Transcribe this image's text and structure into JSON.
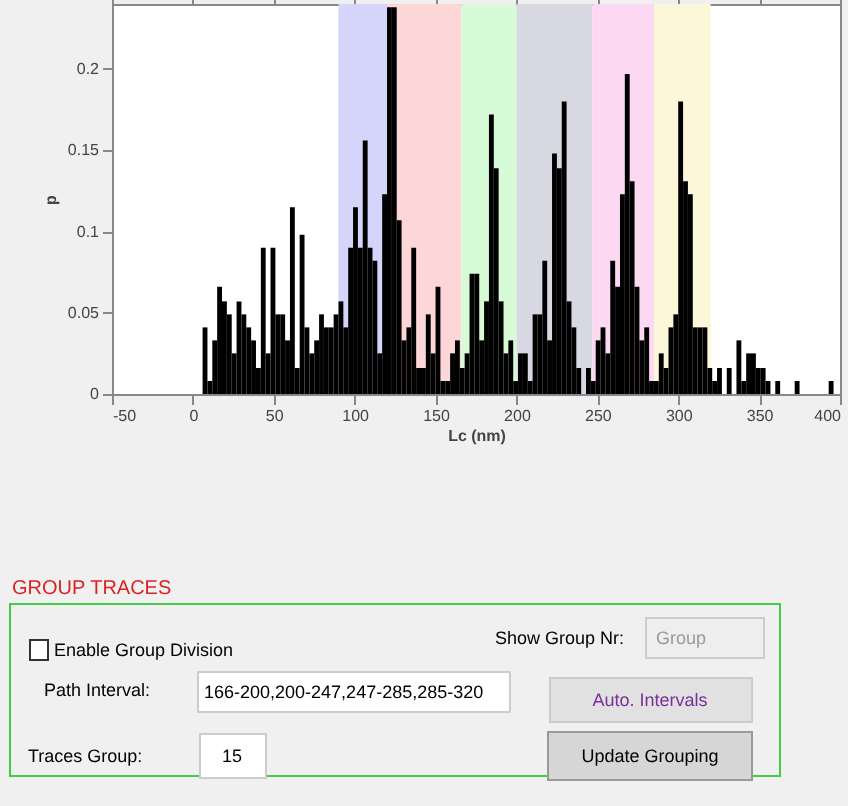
{
  "chart_data": [
    {
      "type": "histogram",
      "xlabel": "Lc (nm)",
      "ylabel": "p",
      "xlim": [
        -50,
        400
      ],
      "ylim": [
        0,
        0.24
      ],
      "xticks": [
        -50,
        0,
        50,
        100,
        150,
        200,
        250,
        300,
        350,
        400
      ],
      "yticks": [
        0,
        0.05,
        0.1,
        0.15,
        0.2
      ],
      "grid": false,
      "color": "#000000",
      "bins": [
        6,
        9,
        12,
        15,
        18,
        21,
        24,
        27,
        30,
        33,
        36,
        39,
        42,
        45,
        48,
        51,
        54,
        57,
        60,
        63,
        66,
        69,
        72,
        75,
        78,
        81,
        84,
        87,
        90,
        93,
        96,
        99,
        102,
        105,
        108,
        111,
        114,
        117,
        120,
        123,
        126,
        129,
        132,
        135,
        138,
        141,
        144,
        147,
        150,
        153,
        156,
        159,
        162,
        165,
        168,
        171,
        174,
        177,
        180,
        183,
        186,
        189,
        192,
        195,
        198,
        201,
        204,
        207,
        210,
        213,
        216,
        219,
        222,
        225,
        228,
        231,
        234,
        237,
        240,
        243,
        246,
        249,
        252,
        255,
        258,
        261,
        264,
        267,
        270,
        273,
        276,
        279,
        282,
        285,
        288,
        291,
        294,
        297,
        300,
        303,
        306,
        309,
        312,
        315,
        318,
        321,
        324,
        327,
        330,
        333,
        336,
        339,
        342,
        345,
        348,
        351,
        354,
        357,
        360,
        363,
        366,
        369,
        372,
        375,
        378,
        381,
        384,
        387,
        390,
        393,
        396
      ],
      "values": [
        0.041,
        0.008,
        0.033,
        0.066,
        0.057,
        0.049,
        0.025,
        0.057,
        0.049,
        0.041,
        0.033,
        0.016,
        0.09,
        0.025,
        0.09,
        0.049,
        0.049,
        0.033,
        0.115,
        0.016,
        0.098,
        0.041,
        0.025,
        0.033,
        0.049,
        0.041,
        0.041,
        0.049,
        0.057,
        0.041,
        0.09,
        0.115,
        0.09,
        0.156,
        0.09,
        0.082,
        0.025,
        0.123,
        0.238,
        0.238,
        0.107,
        0.033,
        0.041,
        0.09,
        0.016,
        0.016,
        0.049,
        0.025,
        0.066,
        0.008,
        0.008,
        0.025,
        0.033,
        0.016,
        0.025,
        0.074,
        0.074,
        0.033,
        0.057,
        0.172,
        0.139,
        0.057,
        0.025,
        0.033,
        0.008,
        0.025,
        0.025,
        0.008,
        0.049,
        0.049,
        0.082,
        0.033,
        0.148,
        0.139,
        0.18,
        0.057,
        0.041,
        0.016,
        0,
        0.016,
        0.008,
        0.033,
        0.041,
        0.025,
        0.082,
        0.066,
        0.123,
        0.197,
        0.131,
        0.066,
        0.033,
        0.041,
        0.008,
        0.008,
        0.025,
        0.016,
        0.041,
        0.049,
        0.18,
        0.131,
        0.123,
        0.041,
        0.041,
        0.041,
        0.016,
        0.008,
        0.016,
        0,
        0.016,
        0,
        0.033,
        0.008,
        0.025,
        0.025,
        0.016,
        0.016,
        0.008,
        0,
        0.008,
        0,
        0,
        0,
        0.008,
        0,
        0,
        0,
        0,
        0,
        0,
        0.008
      ],
      "bands": [
        {
          "axis": "x",
          "from": 90,
          "to": 120,
          "color": "#d5d5fb"
        },
        {
          "axis": "x",
          "from": 120,
          "to": 166,
          "color": "#fdd7d7"
        },
        {
          "axis": "x",
          "from": 166,
          "to": 200,
          "color": "#d6fbd6"
        },
        {
          "axis": "x",
          "from": 200,
          "to": 247,
          "color": "#d8d8e2"
        },
        {
          "axis": "x",
          "from": 247,
          "to": 285,
          "color": "#fcd8f3"
        },
        {
          "axis": "x",
          "from": 285,
          "to": 320,
          "color": "#fdf7d9"
        }
      ]
    },
    {
      "type": "other",
      "title": "GROUP TRACES",
      "annotations": [
        "Enable Group Division",
        "Show Group Nr:",
        "Group",
        "Path Interval:",
        "166-200,200-247,247-285,285-320",
        "Auto. Intervals",
        "Traces Group:",
        "15",
        "Update Grouping"
      ]
    }
  ]
}
